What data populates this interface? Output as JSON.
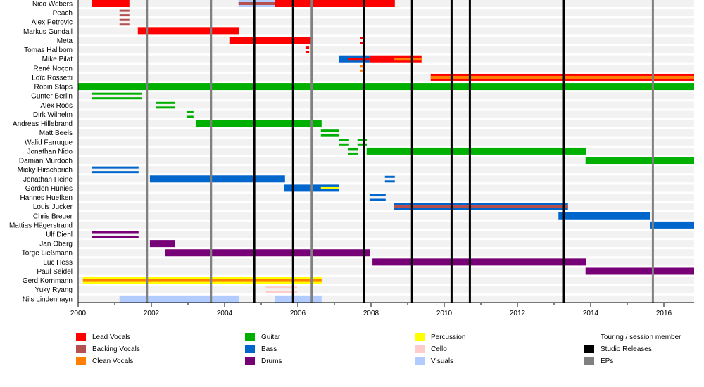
{
  "chart_data": {
    "type": "timeline",
    "title": "",
    "xlim": [
      2000,
      2016.87
    ],
    "x_ticks": [
      "2000",
      "2002",
      "2004",
      "2006",
      "2008",
      "2010",
      "2012",
      "2014",
      "2016"
    ],
    "roles": {
      "lead": {
        "label": "Lead Vocals",
        "color": "#ff0000"
      },
      "backing": {
        "label": "Backing Vocals",
        "color": "#b55050"
      },
      "clean": {
        "label": "Clean Vocals",
        "color": "#ff8000"
      },
      "guitar": {
        "label": "Guitar",
        "color": "#00b000"
      },
      "bass": {
        "label": "Bass",
        "color": "#0066cc"
      },
      "drums": {
        "label": "Drums",
        "color": "#770077"
      },
      "percussion": {
        "label": "Percussion",
        "color": "#ffff00"
      },
      "cello": {
        "label": "Cello",
        "color": "#ffcccc"
      },
      "visuals": {
        "label": "Visuals",
        "color": "#b3ccff"
      }
    },
    "legend": {
      "touring": "Touring / session member",
      "studio": {
        "label": "Studio Releases",
        "color": "#000000"
      },
      "ep": {
        "label": "EPs",
        "color": "#808080"
      }
    },
    "studio_releases": [
      2004.81,
      2005.87,
      2007.81,
      2009.12,
      2010.2,
      2010.7,
      2013.27
    ],
    "eps": [
      2001.88,
      2003.63,
      2006.38,
      2015.7
    ],
    "members": [
      {
        "name": "Nico Webers",
        "bars": [
          {
            "role": "lead",
            "start": 2000.38,
            "end": 2001.4
          },
          {
            "role": "visuals",
            "start": 2004.38,
            "end": 2005.38,
            "stripe": "backing"
          },
          {
            "role": "lead",
            "start": 2005.38,
            "end": 2008.65
          }
        ]
      },
      {
        "name": "Peach",
        "bars": [
          {
            "role": "backing",
            "start": 2001.13,
            "end": 2001.4,
            "touring": true
          }
        ]
      },
      {
        "name": "Alex Petrovic",
        "bars": [
          {
            "role": "backing",
            "start": 2001.13,
            "end": 2001.4,
            "touring": true
          }
        ]
      },
      {
        "name": "Markus Gundall",
        "bars": [
          {
            "role": "lead",
            "start": 2001.63,
            "end": 2004.4
          }
        ]
      },
      {
        "name": "Meta",
        "bars": [
          {
            "role": "lead",
            "start": 2004.13,
            "end": 2006.4
          },
          {
            "role": "lead",
            "start": 2007.71,
            "end": 2007.83,
            "touring": true
          }
        ]
      },
      {
        "name": "Tomas Hallbom",
        "bars": [
          {
            "role": "lead",
            "start": 2006.21,
            "end": 2006.31,
            "touring": true
          }
        ]
      },
      {
        "name": "Mike Pilat",
        "bars": [
          {
            "role": "bass",
            "start": 2007.12,
            "end": 2007.96
          },
          {
            "role": "lead",
            "start": 2007.38,
            "end": 2007.96,
            "stripeOnly": true
          },
          {
            "role": "lead",
            "start": 2007.96,
            "end": 2009.38
          },
          {
            "role": "clean",
            "start": 2008.63,
            "end": 2009.38,
            "stripeOnly": true
          }
        ]
      },
      {
        "name": "René Noçon",
        "bars": [
          {
            "role": "clean",
            "start": 2007.71,
            "end": 2007.83,
            "touring": true
          }
        ]
      },
      {
        "name": "Loïc Rossetti",
        "bars": [
          {
            "role": "lead",
            "start": 2009.63,
            "end": 2016.87,
            "stripe": "clean"
          }
        ]
      },
      {
        "name": "Robin Staps",
        "bars": [
          {
            "role": "guitar",
            "start": 2000,
            "end": 2016.87
          }
        ]
      },
      {
        "name": "Gunter Berlin",
        "bars": [
          {
            "role": "guitar",
            "start": 2000.38,
            "end": 2001.73,
            "touring": true
          }
        ]
      },
      {
        "name": "Alex Roos",
        "bars": [
          {
            "role": "guitar",
            "start": 2002.13,
            "end": 2002.65,
            "touring": true
          }
        ]
      },
      {
        "name": "Dirk Wilhelm",
        "bars": [
          {
            "role": "guitar",
            "start": 2002.96,
            "end": 2003.15,
            "touring": true
          }
        ]
      },
      {
        "name": "Andreas Hillebrand",
        "bars": [
          {
            "role": "guitar",
            "start": 2003.21,
            "end": 2006.65
          }
        ]
      },
      {
        "name": "Matt Beels",
        "bars": [
          {
            "role": "guitar",
            "start": 2006.63,
            "end": 2007.13,
            "touring": true
          }
        ]
      },
      {
        "name": "Walid Farruque",
        "bars": [
          {
            "role": "guitar",
            "start": 2007.12,
            "end": 2007.4,
            "touring": true
          },
          {
            "role": "guitar",
            "start": 2007.63,
            "end": 2007.9,
            "touring": true
          }
        ]
      },
      {
        "name": "Jonathan Nido",
        "bars": [
          {
            "role": "guitar",
            "start": 2007.38,
            "end": 2007.65,
            "touring": true
          },
          {
            "role": "guitar",
            "start": 2007.88,
            "end": 2013.88
          }
        ]
      },
      {
        "name": "Damian Murdoch",
        "bars": [
          {
            "role": "guitar",
            "start": 2013.86,
            "end": 2016.87
          }
        ]
      },
      {
        "name": "Micky Hirschbrich",
        "bars": [
          {
            "role": "bass",
            "start": 2000.38,
            "end": 2001.65,
            "touring": true
          }
        ]
      },
      {
        "name": "Jonathan Heine",
        "bars": [
          {
            "role": "bass",
            "start": 2001.96,
            "end": 2005.65
          },
          {
            "role": "bass",
            "start": 2008.38,
            "end": 2008.65,
            "touring": true
          }
        ]
      },
      {
        "name": "Gordon Hünies",
        "bars": [
          {
            "role": "bass",
            "start": 2005.63,
            "end": 2007.13
          },
          {
            "role": "percussion",
            "start": 2006.63,
            "end": 2007.13,
            "stripeOnly": true
          }
        ]
      },
      {
        "name": "Hannes Huefken",
        "bars": [
          {
            "role": "bass",
            "start": 2007.96,
            "end": 2008.4,
            "touring": true
          }
        ]
      },
      {
        "name": "Louis Jucker",
        "bars": [
          {
            "role": "bass",
            "start": 2008.63,
            "end": 2013.38,
            "stripe": "backing"
          }
        ]
      },
      {
        "name": "Chris Breuer",
        "bars": [
          {
            "role": "bass",
            "start": 2013.12,
            "end": 2015.63
          }
        ]
      },
      {
        "name": "Mattias Hägerstrand",
        "bars": [
          {
            "role": "bass",
            "start": 2015.62,
            "end": 2016.87
          }
        ]
      },
      {
        "name": "Ulf Diehl",
        "bars": [
          {
            "role": "drums",
            "start": 2000.38,
            "end": 2001.65,
            "touring": true
          }
        ]
      },
      {
        "name": "Jan Oberg",
        "bars": [
          {
            "role": "drums",
            "start": 2001.96,
            "end": 2002.65
          }
        ]
      },
      {
        "name": "Torge Ließmann",
        "bars": [
          {
            "role": "drums",
            "start": 2002.38,
            "end": 2007.98
          }
        ]
      },
      {
        "name": "Luc Hess",
        "bars": [
          {
            "role": "drums",
            "start": 2008.04,
            "end": 2013.88
          }
        ]
      },
      {
        "name": "Paul Seidel",
        "bars": [
          {
            "role": "drums",
            "start": 2013.86,
            "end": 2016.87
          }
        ]
      },
      {
        "name": "Gerd Kornmann",
        "bars": [
          {
            "role": "percussion",
            "start": 2000.13,
            "end": 2006.65,
            "stripe": "clean"
          }
        ]
      },
      {
        "name": "Yuky Ryang",
        "bars": [
          {
            "role": "cello",
            "start": 2005.13,
            "end": 2005.98,
            "touring": true
          }
        ]
      },
      {
        "name": "Nils Lindenhayn",
        "bars": [
          {
            "role": "visuals",
            "start": 2001.13,
            "end": 2004.4
          },
          {
            "role": "visuals",
            "start": 2005.38,
            "end": 2006.65
          }
        ]
      }
    ]
  }
}
